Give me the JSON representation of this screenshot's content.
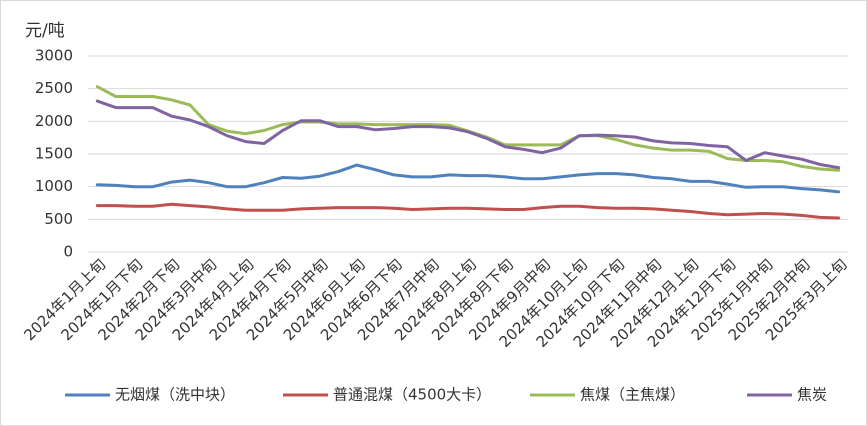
{
  "chart_data": {
    "type": "line",
    "y_axis_label": "元/吨",
    "categories": [
      "2024年1月上旬",
      null,
      "2024年1月下旬",
      null,
      "2024年2月下旬",
      null,
      "2024年3月中旬",
      null,
      "2024年4月上旬",
      null,
      "2024年4月下旬",
      null,
      "2024年5月中旬",
      null,
      "2024年6月上旬",
      null,
      "2024年6月下旬",
      null,
      "2024年7月中旬",
      null,
      "2024年8月上旬",
      null,
      "2024年8月下旬",
      null,
      "2024年9月中旬",
      null,
      "2024年10月上旬",
      null,
      "2024年10月下旬",
      null,
      "2024年11月中旬",
      null,
      "2024年12月上旬",
      null,
      "2024年12月下旬",
      null,
      "2025年1月中旬",
      null,
      "2025年2月中旬",
      null,
      "2025年3月上旬"
    ],
    "series": [
      {
        "name": "无烟煤（洗中块）",
        "color": "#4f81bd",
        "values": [
          1030,
          1020,
          1000,
          1000,
          1070,
          1100,
          1060,
          1000,
          1000,
          1060,
          1140,
          1130,
          1160,
          1230,
          1330,
          1260,
          1180,
          1150,
          1150,
          1180,
          1170,
          1170,
          1150,
          1120,
          1120,
          1150,
          1180,
          1200,
          1200,
          1180,
          1140,
          1120,
          1080,
          1080,
          1040,
          990,
          1000,
          1000,
          970,
          950,
          920
        ]
      },
      {
        "name": "普通混煤（4500大卡）",
        "color": "#c0504d",
        "values": [
          710,
          710,
          700,
          700,
          730,
          710,
          690,
          660,
          640,
          640,
          640,
          660,
          670,
          680,
          680,
          680,
          670,
          650,
          660,
          670,
          670,
          660,
          650,
          650,
          680,
          700,
          700,
          680,
          670,
          670,
          660,
          640,
          620,
          590,
          570,
          580,
          590,
          580,
          560,
          530,
          520
        ]
      },
      {
        "name": "焦煤（主焦煤）",
        "color": "#9bbb59",
        "values": [
          2530,
          2380,
          2380,
          2380,
          2330,
          2250,
          1950,
          1850,
          1810,
          1860,
          1950,
          1990,
          1990,
          1960,
          1960,
          1950,
          1950,
          1950,
          1950,
          1940,
          1850,
          1760,
          1640,
          1640,
          1640,
          1640,
          1780,
          1780,
          1720,
          1640,
          1590,
          1560,
          1560,
          1540,
          1430,
          1400,
          1400,
          1380,
          1310,
          1270,
          1250
        ]
      },
      {
        "name": "焦炭",
        "color": "#8064a2",
        "values": [
          2310,
          2210,
          2210,
          2210,
          2080,
          2020,
          1920,
          1780,
          1690,
          1660,
          1860,
          2010,
          2010,
          1920,
          1920,
          1870,
          1890,
          1920,
          1920,
          1900,
          1840,
          1740,
          1610,
          1570,
          1520,
          1590,
          1780,
          1790,
          1780,
          1760,
          1700,
          1670,
          1660,
          1630,
          1610,
          1400,
          1520,
          1470,
          1420,
          1340,
          1290
        ]
      }
    ],
    "ylim": [
      0,
      3000
    ],
    "yticks": [
      0,
      500,
      1000,
      1500,
      2000,
      2500,
      3000
    ],
    "grid": true,
    "legend": "bottom"
  }
}
